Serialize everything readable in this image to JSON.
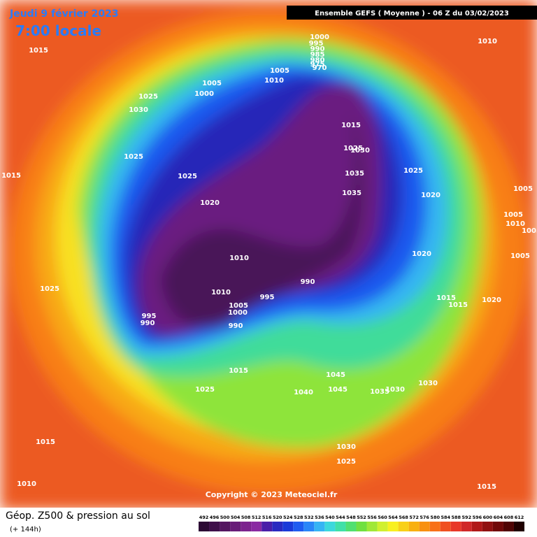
{
  "header": {
    "date": "Jeudi 9 février 2023",
    "time": "7:00 locale",
    "run": "Ensemble GEFS  ( Moyenne )  -  06 Z du 03/02/2023"
  },
  "copyright": "Copyright © 2023 Meteociel.fr",
  "legend": {
    "title": "Géop. Z500 & pression au sol",
    "subtitle": "(+ 144h)",
    "ticks": [
      492,
      496,
      500,
      504,
      508,
      512,
      516,
      520,
      524,
      528,
      532,
      536,
      540,
      544,
      548,
      552,
      556,
      560,
      564,
      568,
      572,
      576,
      580,
      584,
      588,
      592,
      596,
      600,
      604,
      608,
      612
    ],
    "colors": [
      "#2c0a34",
      "#3f0f4a",
      "#541660",
      "#681c78",
      "#7c238e",
      "#8a2aa2",
      "#4a1ea8",
      "#2a2ac0",
      "#1a3ad8",
      "#1f5cf0",
      "#2a86f8",
      "#36b4f4",
      "#3cd8dc",
      "#40e0a8",
      "#50e070",
      "#70e040",
      "#a0e838",
      "#d0f030",
      "#f8f020",
      "#f8d018",
      "#f8b010",
      "#f89010",
      "#f87018",
      "#f05020",
      "#e83828",
      "#d02828",
      "#b01818",
      "#901010",
      "#700808",
      "#500404",
      "#200000"
    ]
  },
  "isobar_labels": [
    1015,
    1000,
    995,
    990,
    985,
    980,
    975,
    970,
    1005,
    1010,
    1005,
    1000,
    1025,
    1030,
    1010,
    1015,
    1025,
    1030,
    1035,
    1035,
    1025,
    1020,
    1005,
    1005,
    1010,
    1005,
    1005,
    1015,
    1025,
    1025,
    1020,
    1010,
    1020,
    990,
    995,
    1010,
    1005,
    1000,
    990,
    995,
    990,
    1015,
    1015,
    1020,
    1025,
    1015,
    1025,
    1045,
    1045,
    1040,
    1035,
    1030,
    1030,
    1015,
    1030,
    1025,
    1010,
    1015
  ]
}
